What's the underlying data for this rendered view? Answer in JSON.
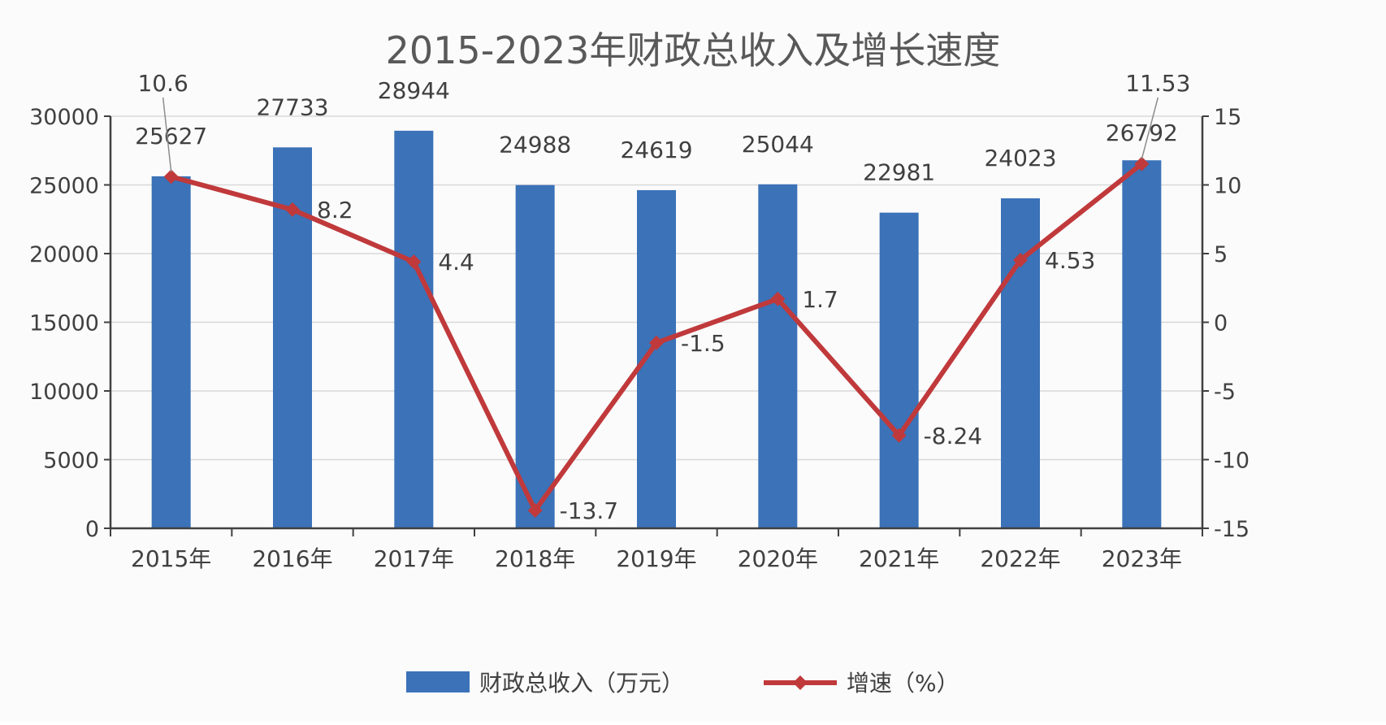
{
  "chart_data": {
    "type": "bar+line",
    "title": "2015-2023年财政总收入及增长速度",
    "categories": [
      "2015年",
      "2016年",
      "2017年",
      "2018年",
      "2019年",
      "2020年",
      "2021年",
      "2022年",
      "2023年"
    ],
    "series": [
      {
        "name": "财政总收入（万元）",
        "type": "bar",
        "axis": "left",
        "color": "#3b72b8",
        "values": [
          25627,
          27733,
          28944,
          24988,
          24619,
          25044,
          22981,
          24023,
          26792
        ]
      },
      {
        "name": "增速（%）",
        "type": "line",
        "axis": "right",
        "color": "#c0393b",
        "values": [
          10.6,
          8.2,
          4.4,
          -13.7,
          -1.5,
          1.7,
          -8.24,
          4.53,
          11.53
        ]
      }
    ],
    "y_left": {
      "min": 0,
      "max": 30000,
      "ticks": [
        "0",
        "5000",
        "10000",
        "15000",
        "20000",
        "25000",
        "30000"
      ]
    },
    "y_right": {
      "min": -15,
      "max": 15,
      "ticks": [
        "-15",
        "-10",
        "-5",
        "0",
        "5",
        "10",
        "15"
      ]
    },
    "grid": true,
    "legend_position": "bottom"
  }
}
